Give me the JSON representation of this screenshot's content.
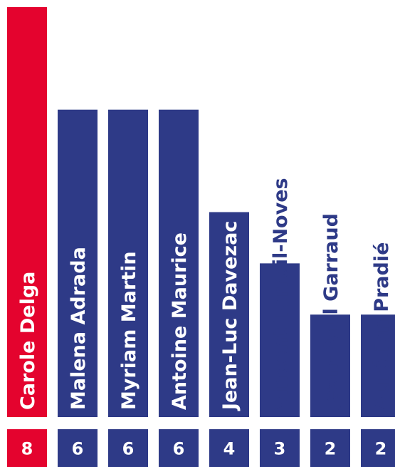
{
  "chart_data": {
    "type": "bar",
    "orientation": "vertical",
    "categories": [
      "Carole Delga",
      "Malena Adrada",
      "Myriam Martin",
      "Antoine Maurice",
      "Jean-Luc Davezac",
      "Vincent Terrail-Noves",
      "Jean-Paul Garraud",
      "Aurélien Pradié"
    ],
    "values": [
      8,
      6,
      6,
      6,
      4,
      3,
      2,
      2
    ],
    "value_labels": [
      "8",
      "6",
      "6",
      "6",
      "4",
      "3",
      "2",
      "2"
    ],
    "colors": [
      "#e4032e",
      "#2e3a87",
      "#2e3a87",
      "#2e3a87",
      "#2e3a87",
      "#2e3a87",
      "#2e3a87",
      "#2e3a87"
    ],
    "label_colors": [
      "#ffffff",
      "#ffffff",
      "#ffffff",
      "#ffffff",
      "#ffffff",
      "#2e3a87",
      "#2e3a87",
      "#2e3a87"
    ],
    "ylim": [
      0,
      8
    ],
    "grid": false,
    "legend": "none"
  }
}
